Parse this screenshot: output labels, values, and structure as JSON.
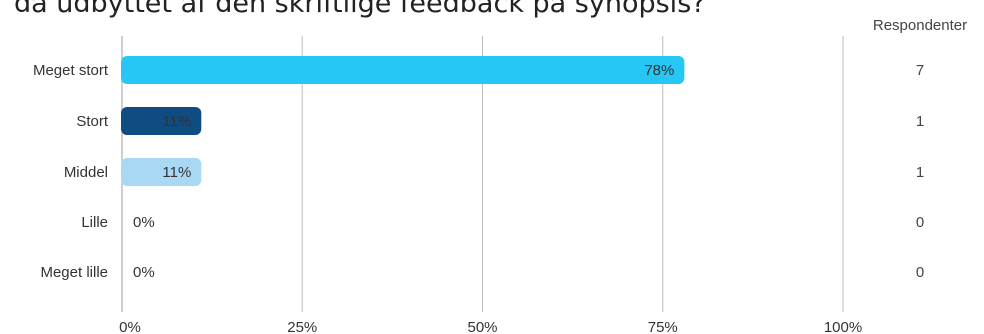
{
  "chart_data": {
    "type": "bar",
    "orientation": "horizontal",
    "title": "da udbyttet af den skriftlige feedback på synopsis?",
    "categories": [
      "Meget stort",
      "Stort",
      "Middel",
      "Lille",
      "Meget lille"
    ],
    "values": [
      78,
      11,
      11,
      0,
      0
    ],
    "value_labels": [
      "78%",
      "11%",
      "11%",
      "0%",
      "0%"
    ],
    "respondents_label": "Respondenter",
    "respondents": [
      7,
      1,
      1,
      0,
      0
    ],
    "xlim": [
      0,
      100
    ],
    "xticks": [
      0,
      25,
      50,
      75,
      100
    ],
    "xtick_labels": [
      "0%",
      "25%",
      "50%",
      "75%",
      "100%"
    ],
    "grid": true,
    "colors": [
      "#26c6f5",
      "#0f4c81",
      "#a9d8f5",
      "#26c6f5",
      "#26c6f5"
    ],
    "label_colors": [
      "#1a1a1a",
      "#ffffff",
      "#1a1a1a",
      "#333333",
      "#333333"
    ]
  }
}
